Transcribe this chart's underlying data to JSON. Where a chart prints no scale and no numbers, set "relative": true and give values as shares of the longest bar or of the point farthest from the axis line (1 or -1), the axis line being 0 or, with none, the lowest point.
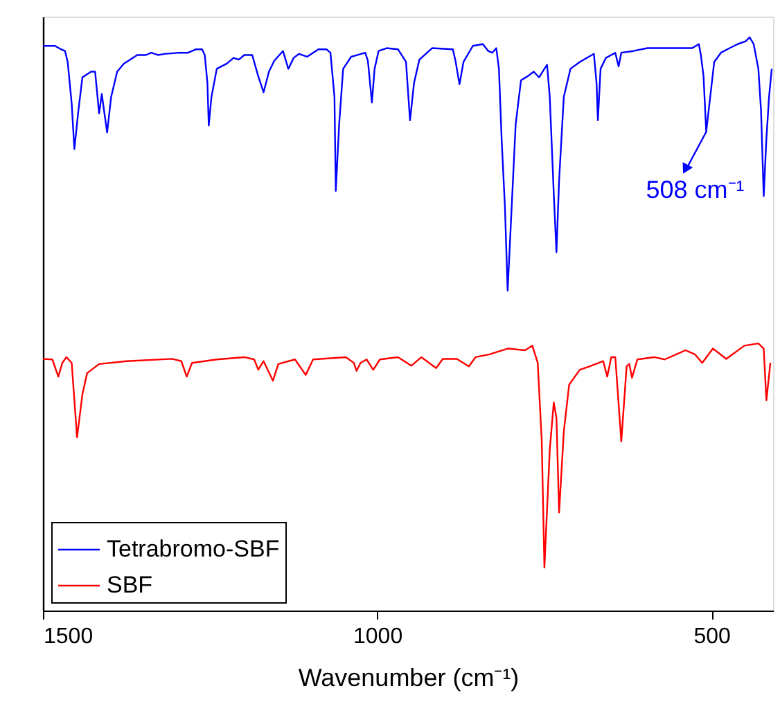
{
  "chart_data": {
    "type": "line",
    "relative": true,
    "xlabel": "Wavenumber (cm⁻¹)",
    "xlim": [
      1500,
      408
    ],
    "xticks": [
      1500,
      1000,
      500
    ],
    "legend": "bottom left",
    "grid": false,
    "annotations": [
      {
        "text": "508 cm⁻¹",
        "x": 508,
        "y": 0.835
      }
    ],
    "series": [
      {
        "name": "Tetrabromo-SBF",
        "color": "#0000ff",
        "x": [
          1500,
          1482,
          1473,
          1467,
          1463,
          1457,
          1453,
          1447,
          1441,
          1428,
          1422,
          1416,
          1412,
          1408,
          1404,
          1398,
          1389,
          1379,
          1359,
          1346,
          1338,
          1328,
          1318,
          1297,
          1283,
          1271,
          1262,
          1258,
          1254,
          1252,
          1248,
          1240,
          1225,
          1215,
          1207,
          1199,
          1187,
          1178,
          1170,
          1162,
          1154,
          1141,
          1133,
          1125,
          1117,
          1105,
          1088,
          1076,
          1070,
          1064,
          1062,
          1057,
          1051,
          1039,
          1018,
          1014,
          1008,
          1004,
          998,
          986,
          969,
          957,
          951,
          945,
          937,
          918,
          887,
          883,
          877,
          871,
          857,
          842,
          834,
          828,
          822,
          818,
          814,
          809,
          805,
          799,
          793,
          785,
          775,
          766,
          758,
          750,
          746,
          742,
          736,
          732,
          728,
          721,
          711,
          697,
          676,
          672,
          670,
          666,
          658,
          644,
          639,
          635,
          617,
          596,
          576,
          547,
          529,
          519,
          516,
          512,
          508,
          502,
          496,
          486,
          473,
          461,
          449,
          443,
          437,
          430,
          426,
          422,
          418,
          414,
          410
        ],
        "values": [
          0.985,
          0.985,
          0.979,
          0.976,
          0.957,
          0.884,
          0.805,
          0.872,
          0.93,
          0.94,
          0.94,
          0.867,
          0.901,
          0.867,
          0.834,
          0.896,
          0.94,
          0.954,
          0.969,
          0.969,
          0.973,
          0.969,
          0.971,
          0.973,
          0.973,
          0.979,
          0.979,
          0.969,
          0.92,
          0.846,
          0.896,
          0.945,
          0.954,
          0.964,
          0.961,
          0.969,
          0.969,
          0.932,
          0.904,
          0.94,
          0.959,
          0.976,
          0.945,
          0.964,
          0.971,
          0.966,
          0.979,
          0.979,
          0.973,
          0.896,
          0.732,
          0.848,
          0.945,
          0.966,
          0.973,
          0.959,
          0.886,
          0.945,
          0.976,
          0.981,
          0.979,
          0.957,
          0.855,
          0.92,
          0.961,
          0.981,
          0.979,
          0.959,
          0.918,
          0.957,
          0.985,
          0.988,
          0.976,
          0.973,
          0.981,
          0.945,
          0.823,
          0.703,
          0.558,
          0.703,
          0.848,
          0.925,
          0.932,
          0.94,
          0.93,
          0.945,
          0.952,
          0.896,
          0.727,
          0.625,
          0.751,
          0.896,
          0.945,
          0.957,
          0.971,
          0.92,
          0.855,
          0.945,
          0.964,
          0.973,
          0.949,
          0.973,
          0.976,
          0.981,
          0.981,
          0.981,
          0.981,
          0.988,
          0.969,
          0.932,
          0.835,
          0.896,
          0.957,
          0.973,
          0.981,
          0.988,
          0.993,
          1.0,
          0.988,
          0.945,
          0.872,
          0.723,
          0.823,
          0.896,
          0.945
        ]
      },
      {
        "name": "SBF",
        "color": "#ff0000",
        "x": [
          1500,
          1486,
          1477,
          1471,
          1465,
          1457,
          1449,
          1441,
          1434,
          1416,
          1375,
          1307,
          1293,
          1285,
          1277,
          1240,
          1199,
          1184,
          1178,
          1170,
          1156,
          1148,
          1123,
          1107,
          1096,
          1047,
          1035,
          1031,
          1025,
          1016,
          1006,
          996,
          969,
          949,
          934,
          912,
          902,
          881,
          863,
          853,
          832,
          805,
          779,
          768,
          760,
          754,
          750,
          742,
          736,
          732,
          728,
          721,
          713,
          697,
          682,
          662,
          656,
          650,
          644,
          635,
          627,
          623,
          619,
          611,
          586,
          570,
          539,
          525,
          514,
          498,
          478,
          451,
          430,
          422,
          418,
          412
        ],
        "values": [
          0.439,
          0.438,
          0.408,
          0.432,
          0.442,
          0.432,
          0.302,
          0.377,
          0.414,
          0.43,
          0.435,
          0.439,
          0.435,
          0.408,
          0.432,
          0.438,
          0.442,
          0.438,
          0.42,
          0.435,
          0.401,
          0.43,
          0.438,
          0.411,
          0.438,
          0.442,
          0.432,
          0.418,
          0.432,
          0.438,
          0.42,
          0.438,
          0.442,
          0.427,
          0.442,
          0.423,
          0.439,
          0.439,
          0.426,
          0.442,
          0.447,
          0.457,
          0.454,
          0.462,
          0.432,
          0.297,
          0.075,
          0.28,
          0.363,
          0.336,
          0.171,
          0.312,
          0.394,
          0.42,
          0.426,
          0.435,
          0.408,
          0.442,
          0.442,
          0.295,
          0.426,
          0.43,
          0.406,
          0.438,
          0.442,
          0.438,
          0.454,
          0.447,
          0.432,
          0.457,
          0.439,
          0.462,
          0.466,
          0.457,
          0.367,
          0.432
        ]
      }
    ]
  }
}
